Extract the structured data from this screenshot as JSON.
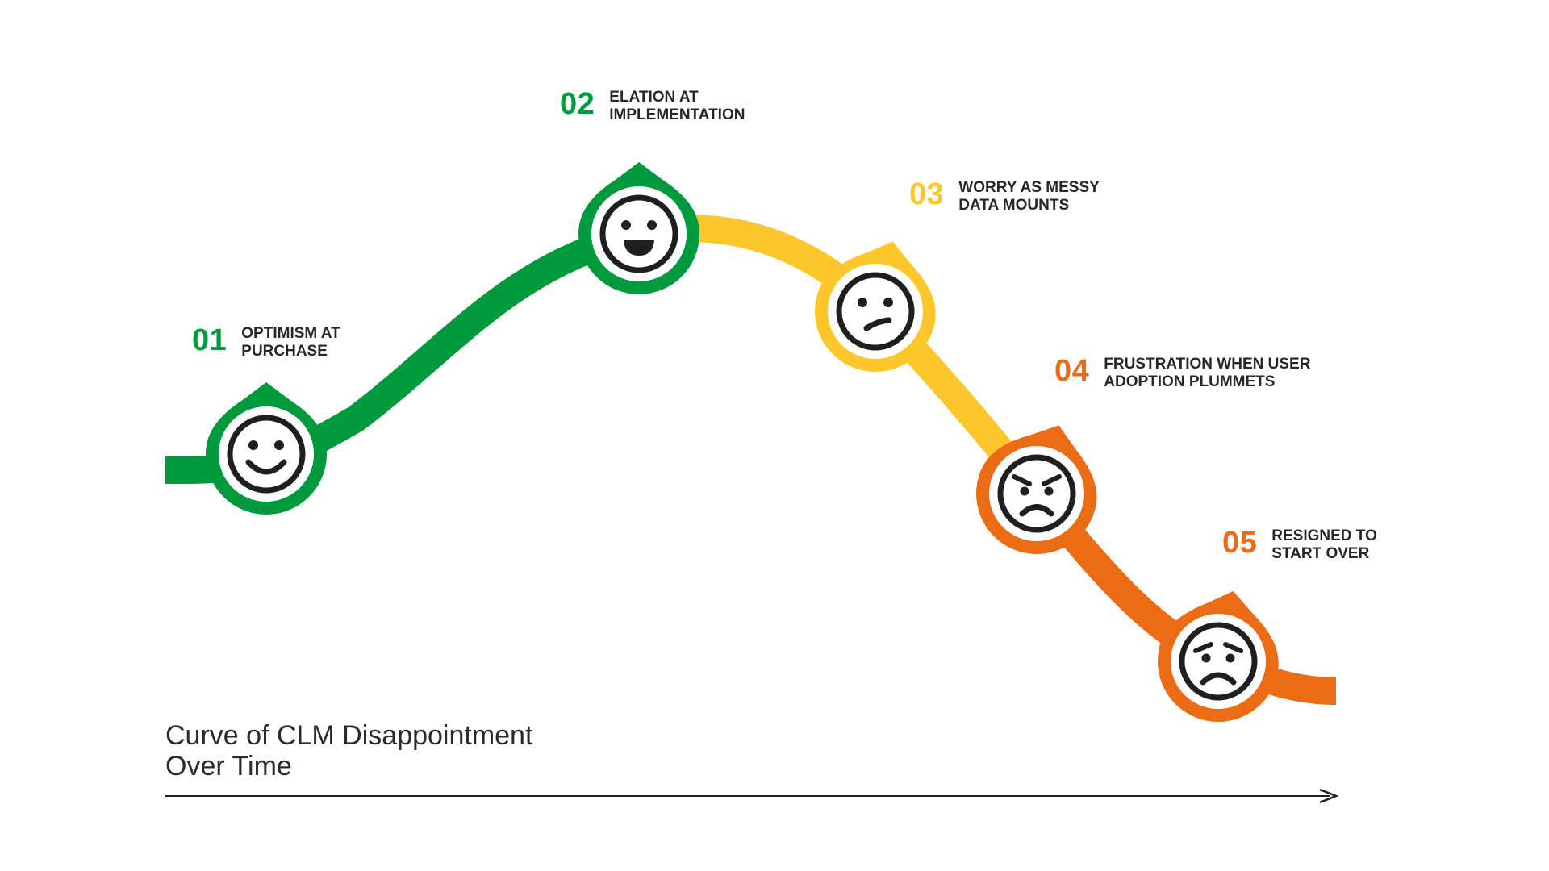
{
  "title": "Curve of CLM Disappointment\nOver Time",
  "colors": {
    "green": "#009a3e",
    "yellow": "#fdc62a",
    "orange": "#ec6b15",
    "ink": "#1f1f1f"
  },
  "stages": [
    {
      "number": "01",
      "label": "OPTIMISM AT\nPURCHASE",
      "emotion": "smile-icon",
      "color": "green"
    },
    {
      "number": "02",
      "label": "ELATION AT\nIMPLEMENTATION",
      "emotion": "grin-icon",
      "color": "green"
    },
    {
      "number": "03",
      "label": "WORRY AS MESSY\nDATA MOUNTS",
      "emotion": "confused-face-icon",
      "color": "yellow"
    },
    {
      "number": "04",
      "label": "FRUSTRATION WHEN USER\nADOPTION PLUMMETS",
      "emotion": "angry-face-icon",
      "color": "orange"
    },
    {
      "number": "05",
      "label": "RESIGNED TO\nSTART OVER",
      "emotion": "worried-face-icon",
      "color": "orange"
    }
  ]
}
